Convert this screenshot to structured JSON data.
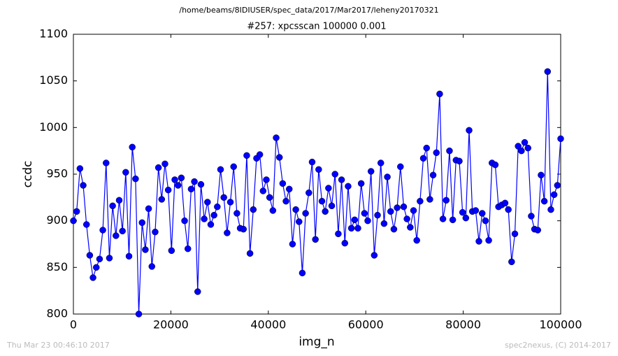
{
  "chart_data": {
    "type": "line",
    "suptitle": "/home/beams/8IDIUSER/spec_data/2017/Mar2017/leheny20170321",
    "title": "#257: xpcsscan 100000 0.001",
    "x_label": "img_n",
    "y_label": "ccdc",
    "footer_left": "Thu Mar 23 00:46:10 2017",
    "footer_right": "spec2nexus, (C) 2014-2017",
    "xlim": [
      0,
      100000
    ],
    "ylim": [
      800,
      1100
    ],
    "xticks": [
      0,
      20000,
      40000,
      60000,
      80000,
      100000
    ],
    "yticks": [
      800,
      850,
      900,
      950,
      1000,
      1050,
      1100
    ],
    "grid": false,
    "x": [
      0,
      671,
      1342,
      2013,
      2685,
      3356,
      4027,
      4698,
      5369,
      6040,
      6711,
      7383,
      8054,
      8725,
      9396,
      10067,
      10738,
      11409,
      12081,
      12752,
      13423,
      14094,
      14765,
      15436,
      16107,
      16779,
      17450,
      18121,
      18792,
      19463,
      20134,
      20805,
      21477,
      22148,
      22819,
      23490,
      24161,
      24832,
      25503,
      26174,
      26846,
      27517,
      28188,
      28859,
      29530,
      30201,
      30872,
      31544,
      32215,
      32886,
      33557,
      34228,
      34899,
      35570,
      36242,
      36913,
      37584,
      38255,
      38926,
      39597,
      40268,
      40940,
      41611,
      42282,
      42953,
      43624,
      44295,
      44966,
      45638,
      46309,
      46980,
      47651,
      48322,
      48993,
      49664,
      50336,
      51007,
      51678,
      52349,
      53020,
      53691,
      54362,
      55034,
      55705,
      56376,
      57047,
      57718,
      58389,
      59060,
      59732,
      60403,
      61074,
      61745,
      62416,
      63087,
      63758,
      64430,
      65101,
      65772,
      66443,
      67114,
      67785,
      68456,
      69128,
      69799,
      70470,
      71141,
      71812,
      72483,
      73154,
      73826,
      74497,
      75168,
      75839,
      76510,
      77181,
      77852,
      78523,
      79195,
      79866,
      80537,
      81208,
      81879,
      82550,
      83221,
      83893,
      84564,
      85235,
      85906,
      86577,
      87248,
      87919,
      88591,
      89262,
      89933,
      90604,
      91275,
      91946,
      92617,
      93289,
      93960,
      94631,
      95302,
      95973,
      96644,
      97315,
      97987,
      98658,
      99329,
      100000
    ],
    "series": [
      {
        "name": "ccdc",
        "color": "#0000ff",
        "values": [
          900,
          910,
          956,
          938,
          896,
          863,
          839,
          850,
          859,
          890,
          962,
          860,
          916,
          884,
          922,
          889,
          952,
          862,
          979,
          945,
          800,
          898,
          869,
          913,
          851,
          888,
          957,
          923,
          961,
          933,
          868,
          944,
          938,
          946,
          900,
          870,
          934,
          942,
          824,
          939,
          902,
          920,
          896,
          906,
          915,
          955,
          925,
          887,
          920,
          958,
          908,
          892,
          891,
          970,
          865,
          912,
          967,
          971,
          932,
          944,
          925,
          911,
          989,
          968,
          940,
          921,
          934,
          875,
          912,
          899,
          844,
          908,
          930,
          963,
          880,
          955,
          921,
          910,
          935,
          916,
          950,
          886,
          944,
          876,
          937,
          892,
          901,
          892,
          940,
          908,
          900,
          953,
          863,
          906,
          962,
          897,
          947,
          910,
          891,
          914,
          958,
          915,
          902,
          893,
          911,
          879,
          921,
          967,
          978,
          923,
          949,
          973,
          1036,
          902,
          922,
          975,
          901,
          965,
          964,
          909,
          903,
          997,
          910,
          911,
          878,
          908,
          900,
          879,
          962,
          960,
          915,
          917,
          919,
          912,
          856,
          886,
          980,
          975,
          984,
          978,
          905,
          891,
          890,
          949,
          921,
          1060,
          912,
          928,
          938,
          988
        ]
      }
    ]
  }
}
